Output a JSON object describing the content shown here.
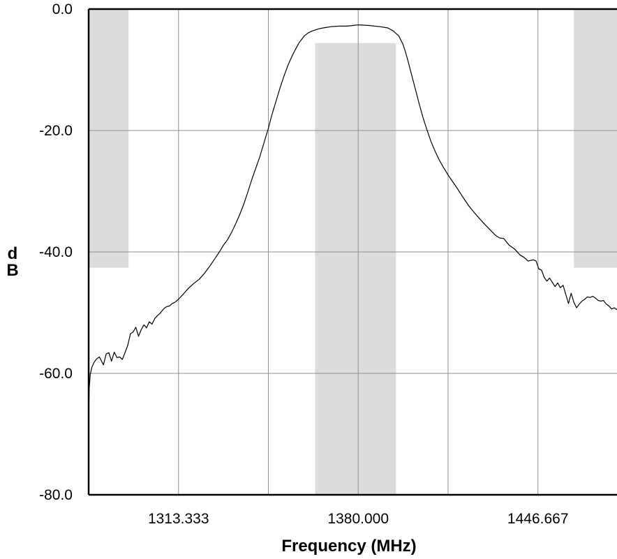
{
  "chart_data": {
    "type": "line",
    "title": "",
    "xlabel": "Frequency (MHz)",
    "ylabel": "dB",
    "xlim": [
      1280.0,
      1476.0
    ],
    "ylim": [
      -80,
      0
    ],
    "x_ticks": [
      1313.333,
      1380.0,
      1446.667
    ],
    "x_tick_labels": [
      "1313.333",
      "1380.000",
      "1446.667"
    ],
    "x_gridlines": [
      1313.333,
      1346.667,
      1380.0,
      1413.333,
      1446.667
    ],
    "y_ticks": [
      0,
      -20,
      -40,
      -60,
      -80
    ],
    "y_tick_labels": [
      "0.0",
      "-20.0",
      "-40.0",
      "-60.0",
      "-80.0"
    ],
    "grid": true,
    "mask_regions": [
      {
        "x0": 1280.0,
        "x1": 1294.8,
        "y_top": 0,
        "y_bottom": -42.6,
        "color": "#dcdcdc"
      },
      {
        "x0": 1364.0,
        "x1": 1394.0,
        "y_top": -5.6,
        "y_bottom": -80,
        "color": "#dcdcdc"
      },
      {
        "x0": 1460.0,
        "x1": 1476.0,
        "y_top": 0,
        "y_bottom": -42.6,
        "color": "#dcdcdc"
      }
    ],
    "series": [
      {
        "color": "#000000",
        "x": [
          1280.0,
          1280.2,
          1280.6,
          1281.2,
          1282.0,
          1283.0,
          1284.0,
          1285.5,
          1286.5,
          1287.5,
          1288.5,
          1289.5,
          1290.5,
          1291.5,
          1292.5,
          1293.5,
          1294.5,
          1295.5,
          1296.5,
          1297.5,
          1298.5,
          1299.5,
          1300.5,
          1301.5,
          1302.5,
          1303.5,
          1304.5,
          1305.5,
          1306.5,
          1308.0,
          1309.0,
          1310.0,
          1311.0,
          1312.0,
          1313.3,
          1315.0,
          1317.0,
          1319.0,
          1321.0,
          1323.0,
          1325.0,
          1327.0,
          1328.5,
          1330.0,
          1331.5,
          1333.0,
          1334.5,
          1336.0,
          1337.5,
          1339.0,
          1340.5,
          1342.0,
          1343.5,
          1345.0,
          1346.7,
          1348.0,
          1349.5,
          1351.0,
          1352.5,
          1354.0,
          1355.5,
          1357.0,
          1358.0,
          1359.0,
          1360.0,
          1361.5,
          1363.0,
          1365.0,
          1367.0,
          1370.0,
          1373.0,
          1376.0,
          1380.0,
          1384.0,
          1388.0,
          1391.0,
          1393.0,
          1395.0,
          1396.5,
          1397.5,
          1398.5,
          1399.5,
          1400.5,
          1401.5,
          1402.5,
          1404.0,
          1405.5,
          1407.0,
          1408.5,
          1410.0,
          1411.5,
          1413.3,
          1415.0,
          1417.0,
          1419.0,
          1421.0,
          1423.0,
          1425.0,
          1427.0,
          1429.0,
          1431.0,
          1432.5,
          1434.0,
          1436.0,
          1438.0,
          1440.0,
          1441.5,
          1443.0,
          1444.0,
          1445.0,
          1446.0,
          1447.0,
          1448.0,
          1449.0,
          1450.0,
          1451.0,
          1452.0,
          1453.0,
          1454.0,
          1455.0,
          1456.0,
          1457.0,
          1458.0,
          1459.0,
          1460.0,
          1461.0,
          1462.0,
          1463.0,
          1464.0,
          1465.0,
          1466.0,
          1467.0,
          1468.0,
          1469.0,
          1470.0,
          1471.0,
          1472.0,
          1473.0,
          1474.0,
          1475.0,
          1476.0
        ],
        "y": [
          -67.0,
          -62.5,
          -60.2,
          -59.0,
          -58.2,
          -57.6,
          -57.3,
          -58.6,
          -56.8,
          -56.6,
          -58.0,
          -56.5,
          -57.4,
          -57.3,
          -57.7,
          -56.6,
          -55.4,
          -53.5,
          -53.2,
          -52.4,
          -53.9,
          -52.8,
          -52.0,
          -52.5,
          -51.5,
          -51.9,
          -51.0,
          -50.5,
          -50.1,
          -49.3,
          -49.0,
          -48.9,
          -48.5,
          -48.3,
          -47.8,
          -47.0,
          -46.0,
          -45.2,
          -44.5,
          -43.5,
          -42.3,
          -41.0,
          -40.0,
          -38.9,
          -38.0,
          -36.8,
          -35.4,
          -33.9,
          -32.2,
          -30.2,
          -28.1,
          -26.2,
          -24.3,
          -22.1,
          -19.6,
          -17.4,
          -15.2,
          -13.0,
          -11.0,
          -9.2,
          -7.7,
          -6.4,
          -5.6,
          -5.0,
          -4.4,
          -3.9,
          -3.6,
          -3.3,
          -3.1,
          -2.9,
          -2.8,
          -2.8,
          -2.6,
          -2.7,
          -2.9,
          -3.1,
          -3.6,
          -4.4,
          -5.7,
          -7.0,
          -8.6,
          -10.3,
          -12.0,
          -13.7,
          -15.4,
          -17.8,
          -19.9,
          -21.8,
          -23.4,
          -24.8,
          -26.0,
          -27.3,
          -28.4,
          -29.7,
          -31.1,
          -32.4,
          -33.5,
          -34.5,
          -35.5,
          -36.4,
          -37.3,
          -37.7,
          -37.8,
          -38.9,
          -39.5,
          -40.5,
          -40.9,
          -41.5,
          -41.4,
          -41.3,
          -41.5,
          -42.8,
          -43.0,
          -44.2,
          -44.8,
          -44.3,
          -45.0,
          -45.7,
          -45.1,
          -45.9,
          -45.5,
          -47.0,
          -48.5,
          -46.8,
          -48.3,
          -49.2,
          -48.6,
          -48.1,
          -47.8,
          -47.4,
          -47.5,
          -47.3,
          -47.6,
          -48.0,
          -48.1,
          -48.0,
          -48.6,
          -48.9,
          -49.4,
          -49.2,
          -49.5
        ]
      }
    ]
  }
}
